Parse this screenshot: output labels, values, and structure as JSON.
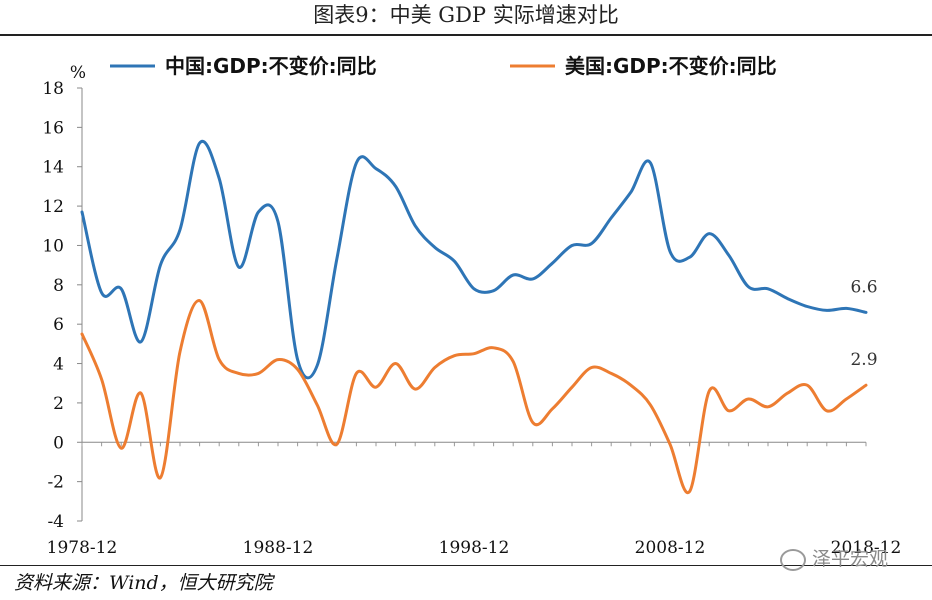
{
  "title": "图表9：中美 GDP 实际增速对比",
  "source": "资料来源：Wind，恒大研究院",
  "watermark": "泽平宏观",
  "chart_data": {
    "type": "line",
    "title": "图表9：中美 GDP 实际增速对比",
    "ylabel": "%",
    "xlabel": "",
    "ylim": [
      -4,
      18
    ],
    "yticks": [
      -4,
      -2,
      0,
      2,
      4,
      6,
      8,
      10,
      12,
      14,
      16,
      18
    ],
    "xlim": [
      1978,
      2018
    ],
    "xtick_labels": [
      "1978-12",
      "1988-12",
      "1998-12",
      "2008-12",
      "2018-12"
    ],
    "xtick_values": [
      1978,
      1988,
      1998,
      2008,
      2018
    ],
    "legend_position": "top",
    "grid": false,
    "x": [
      1978,
      1979,
      1980,
      1981,
      1982,
      1983,
      1984,
      1985,
      1986,
      1987,
      1988,
      1989,
      1990,
      1991,
      1992,
      1993,
      1994,
      1995,
      1996,
      1997,
      1998,
      1999,
      2000,
      2001,
      2002,
      2003,
      2004,
      2005,
      2006,
      2007,
      2008,
      2009,
      2010,
      2011,
      2012,
      2013,
      2014,
      2015,
      2016,
      2017,
      2018
    ],
    "series": [
      {
        "name": "中国:GDP:不变价:同比",
        "color": "#2e75b6",
        "values": [
          11.7,
          7.6,
          7.8,
          5.1,
          9.0,
          10.8,
          15.2,
          13.4,
          8.9,
          11.7,
          11.2,
          4.2,
          3.9,
          9.3,
          14.2,
          13.9,
          13.0,
          11.0,
          9.9,
          9.2,
          7.8,
          7.7,
          8.5,
          8.3,
          9.1,
          10.0,
          10.1,
          11.4,
          12.7,
          14.2,
          9.7,
          9.4,
          10.6,
          9.5,
          7.9,
          7.8,
          7.3,
          6.9,
          6.7,
          6.8,
          6.6
        ],
        "end_label": "6.6"
      },
      {
        "name": "美国:GDP:不变价:同比",
        "color": "#ed7d31",
        "values": [
          5.5,
          3.2,
          -0.3,
          2.5,
          -1.8,
          4.6,
          7.2,
          4.2,
          3.5,
          3.5,
          4.2,
          3.7,
          1.9,
          -0.1,
          3.5,
          2.8,
          4.0,
          2.7,
          3.8,
          4.4,
          4.5,
          4.8,
          4.1,
          1.0,
          1.7,
          2.8,
          3.8,
          3.5,
          2.9,
          1.9,
          -0.1,
          -2.5,
          2.6,
          1.6,
          2.2,
          1.8,
          2.5,
          2.9,
          1.6,
          2.2,
          2.9
        ],
        "end_label": "2.9"
      }
    ]
  }
}
